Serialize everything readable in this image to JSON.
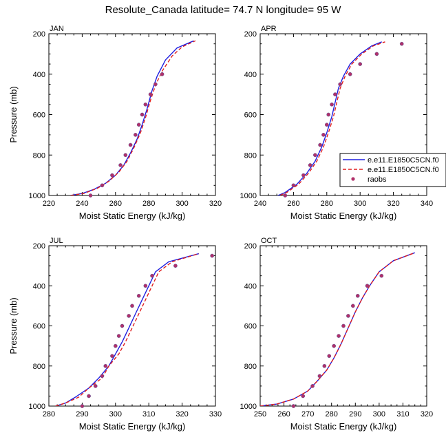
{
  "page_title": "Resolute_Canada  latitude= 74.7 N longitude= 95 W",
  "legend": {
    "entries": [
      {
        "label": "e.e11.E1850C5CN.f0",
        "style": "solid",
        "color": "#1f1fe0"
      },
      {
        "label": "e.e11.E1850C5CN.f0",
        "style": "dashed",
        "color": "#e01f1f"
      },
      {
        "label": "raobs",
        "style": "marker",
        "color": "#b0306a"
      }
    ]
  },
  "chart_data": [
    {
      "type": "line",
      "panel_label": "JAN",
      "xlabel": "Moist Static Energy (kJ/kg)",
      "ylabel": "Pressure (mb)",
      "xlim": [
        220,
        320
      ],
      "ylim": [
        200,
        1000
      ],
      "xticks": [
        220,
        240,
        260,
        280,
        300,
        320
      ],
      "yticks": [
        200,
        400,
        600,
        800,
        1000
      ],
      "series": [
        {
          "name": "e.e11.E1850C5CN.f0",
          "style": "solid",
          "color": "#1f1fe0",
          "points": [
            [
              233,
              1000
            ],
            [
              240,
              990
            ],
            [
              247,
              970
            ],
            [
              254,
              940
            ],
            [
              260,
              900
            ],
            [
              265,
              850
            ],
            [
              269,
              790
            ],
            [
              273,
              720
            ],
            [
              276,
              650
            ],
            [
              279,
              570
            ],
            [
              282,
              480
            ],
            [
              285,
              410
            ],
            [
              290,
              330
            ],
            [
              297,
              270
            ],
            [
              307,
              235
            ]
          ]
        },
        {
          "name": "e.e11.E1850C5CN.f0",
          "style": "dashed",
          "color": "#e01f1f",
          "points": [
            [
              233,
              1000
            ],
            [
              241,
              990
            ],
            [
              249,
              965
            ],
            [
              256,
              930
            ],
            [
              262,
              885
            ],
            [
              267,
              830
            ],
            [
              271,
              765
            ],
            [
              275,
              690
            ],
            [
              278,
              615
            ],
            [
              281,
              530
            ],
            [
              284,
              455
            ],
            [
              288,
              385
            ],
            [
              294,
              310
            ],
            [
              300,
              265
            ],
            [
              308,
              235
            ]
          ]
        },
        {
          "name": "raobs",
          "style": "marker",
          "color": "#b0306a",
          "points": [
            [
              245,
              1000
            ],
            [
              252,
              950
            ],
            [
              258,
              900
            ],
            [
              263,
              850
            ],
            [
              266,
              800
            ],
            [
              269,
              750
            ],
            [
              272,
              700
            ],
            [
              274,
              650
            ],
            [
              276,
              600
            ],
            [
              278,
              550
            ],
            [
              281,
              500
            ],
            [
              284,
              450
            ],
            [
              288,
              400
            ]
          ]
        }
      ]
    },
    {
      "type": "line",
      "panel_label": "APR",
      "xlabel": "Moist Static Energy (kJ/kg)",
      "ylabel": "",
      "xlim": [
        240,
        340
      ],
      "ylim": [
        200,
        1000
      ],
      "xticks": [
        240,
        260,
        280,
        300,
        320,
        340
      ],
      "yticks": [
        200,
        400,
        600,
        800,
        1000
      ],
      "series": [
        {
          "name": "e.e11.E1850C5CN.f0",
          "style": "solid",
          "color": "#1f1fe0",
          "points": [
            [
              248,
              1010
            ],
            [
              255,
              985
            ],
            [
              262,
              945
            ],
            [
              268,
              890
            ],
            [
              273,
              830
            ],
            [
              277,
              760
            ],
            [
              280,
              690
            ],
            [
              283,
              610
            ],
            [
              285,
              540
            ],
            [
              287,
              470
            ],
            [
              290,
              410
            ],
            [
              294,
              350
            ],
            [
              300,
              300
            ],
            [
              307,
              260
            ],
            [
              313,
              240
            ]
          ]
        },
        {
          "name": "e.e11.E1850C5CN.f0",
          "style": "dashed",
          "color": "#e01f1f",
          "points": [
            [
              249,
              1010
            ],
            [
              256,
              985
            ],
            [
              263,
              945
            ],
            [
              269,
              890
            ],
            [
              274,
              830
            ],
            [
              278,
              760
            ],
            [
              281,
              690
            ],
            [
              284,
              610
            ],
            [
              286,
              540
            ],
            [
              288,
              470
            ],
            [
              291,
              410
            ],
            [
              295,
              350
            ],
            [
              301,
              300
            ],
            [
              308,
              260
            ],
            [
              315,
              240
            ]
          ]
        },
        {
          "name": "raobs",
          "style": "marker",
          "color": "#b0306a",
          "points": [
            [
              255,
              1000
            ],
            [
              260,
              950
            ],
            [
              266,
              900
            ],
            [
              270,
              850
            ],
            [
              273,
              800
            ],
            [
              276,
              750
            ],
            [
              278,
              700
            ],
            [
              280,
              650
            ],
            [
              281,
              600
            ],
            [
              283,
              550
            ],
            [
              285,
              500
            ],
            [
              288,
              450
            ],
            [
              294,
              400
            ],
            [
              300,
              350
            ],
            [
              310,
              300
            ],
            [
              325,
              250
            ]
          ]
        }
      ]
    },
    {
      "type": "line",
      "panel_label": "JUL",
      "xlabel": "Moist Static Energy (kJ/kg)",
      "ylabel": "Pressure (mb)",
      "xlim": [
        280,
        330
      ],
      "ylim": [
        200,
        1000
      ],
      "xticks": [
        280,
        290,
        300,
        310,
        320,
        330
      ],
      "yticks": [
        200,
        400,
        600,
        800,
        1000
      ],
      "series": [
        {
          "name": "e.e11.E1850C5CN.f0",
          "style": "solid",
          "color": "#1f1fe0",
          "points": [
            [
              282,
              1000
            ],
            [
              285,
              985
            ],
            [
              288,
              955
            ],
            [
              292,
              910
            ],
            [
              295,
              860
            ],
            [
              298,
              800
            ],
            [
              300,
              740
            ],
            [
              302,
              680
            ],
            [
              304,
              610
            ],
            [
              306,
              540
            ],
            [
              308,
              470
            ],
            [
              310,
              400
            ],
            [
              312,
              330
            ],
            [
              316,
              280
            ],
            [
              325,
              240
            ]
          ]
        },
        {
          "name": "e.e11.E1850C5CN.f0",
          "style": "dashed",
          "color": "#e01f1f",
          "points": [
            [
              282,
              1000
            ],
            [
              285,
              985
            ],
            [
              289,
              955
            ],
            [
              292,
              910
            ],
            [
              296,
              860
            ],
            [
              298,
              800
            ],
            [
              301,
              740
            ],
            [
              303,
              680
            ],
            [
              305,
              610
            ],
            [
              307,
              540
            ],
            [
              309,
              470
            ],
            [
              311,
              400
            ],
            [
              313,
              330
            ],
            [
              317,
              280
            ],
            [
              325,
              240
            ]
          ]
        },
        {
          "name": "raobs",
          "style": "marker",
          "color": "#b0306a",
          "points": [
            [
              290,
              1000
            ],
            [
              292,
              950
            ],
            [
              294,
              900
            ],
            [
              296,
              850
            ],
            [
              297,
              800
            ],
            [
              299,
              750
            ],
            [
              300,
              700
            ],
            [
              301,
              650
            ],
            [
              302,
              600
            ],
            [
              304,
              550
            ],
            [
              305,
              500
            ],
            [
              307,
              450
            ],
            [
              309,
              400
            ],
            [
              311,
              350
            ],
            [
              318,
              300
            ],
            [
              329,
              250
            ]
          ]
        }
      ]
    },
    {
      "type": "line",
      "panel_label": "OCT",
      "xlabel": "Moist Static Energy (kJ/kg)",
      "ylabel": "",
      "xlim": [
        250,
        320
      ],
      "ylim": [
        200,
        1000
      ],
      "xticks": [
        250,
        260,
        270,
        280,
        290,
        300,
        310,
        320
      ],
      "yticks": [
        200,
        400,
        600,
        800,
        1000
      ],
      "series": [
        {
          "name": "e.e11.E1850C5CN.f0",
          "style": "solid",
          "color": "#1f1fe0",
          "points": [
            [
              250,
              1000
            ],
            [
              257,
              990
            ],
            [
              264,
              965
            ],
            [
              270,
              925
            ],
            [
              274,
              875
            ],
            [
              278,
              820
            ],
            [
              281,
              760
            ],
            [
              284,
              690
            ],
            [
              287,
              610
            ],
            [
              290,
              530
            ],
            [
              293,
              460
            ],
            [
              296,
              400
            ],
            [
              300,
              330
            ],
            [
              306,
              275
            ],
            [
              315,
              235
            ]
          ]
        },
        {
          "name": "e.e11.E1850C5CN.f0",
          "style": "dashed",
          "color": "#e01f1f",
          "points": [
            [
              250,
              1000
            ],
            [
              257,
              990
            ],
            [
              264,
              965
            ],
            [
              270,
              925
            ],
            [
              274,
              875
            ],
            [
              278,
              820
            ],
            [
              281,
              760
            ],
            [
              284,
              690
            ],
            [
              287,
              610
            ],
            [
              290,
              530
            ],
            [
              293,
              460
            ],
            [
              296,
              400
            ],
            [
              300,
              330
            ],
            [
              306,
              275
            ],
            [
              315,
              235
            ]
          ]
        },
        {
          "name": "raobs",
          "style": "marker",
          "color": "#b0306a",
          "points": [
            [
              264,
              1000
            ],
            [
              268,
              950
            ],
            [
              272,
              900
            ],
            [
              275,
              850
            ],
            [
              277,
              800
            ],
            [
              279,
              750
            ],
            [
              281,
              700
            ],
            [
              283,
              650
            ],
            [
              285,
              600
            ],
            [
              287,
              550
            ],
            [
              289,
              500
            ],
            [
              291,
              450
            ],
            [
              295,
              400
            ],
            [
              301,
              350
            ]
          ]
        }
      ]
    }
  ]
}
